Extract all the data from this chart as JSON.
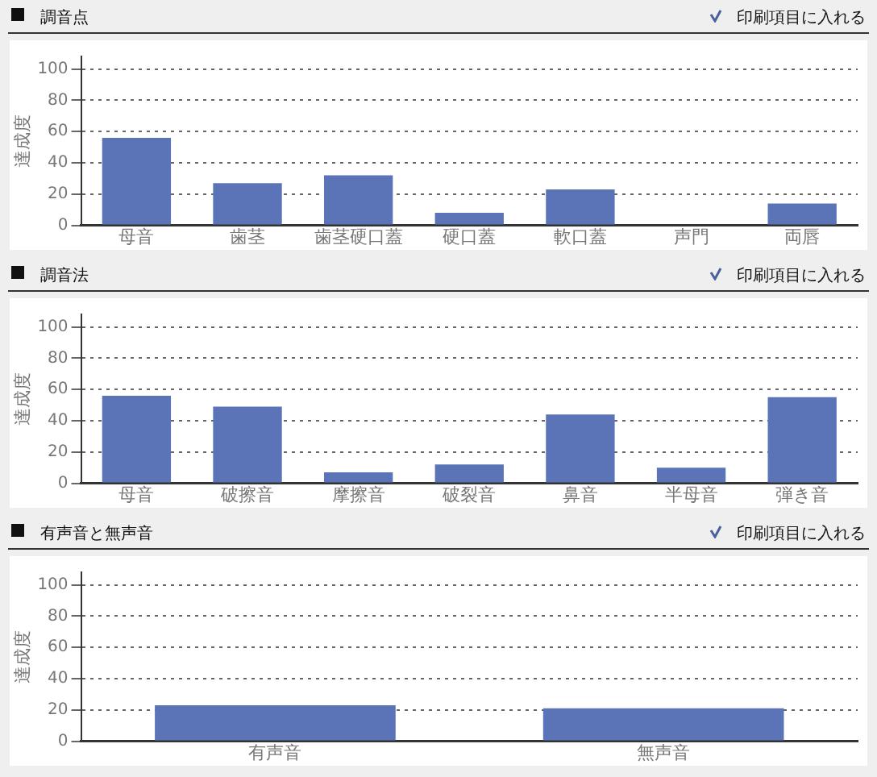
{
  "chart_data": [
    {
      "type": "bar",
      "title": "調音点",
      "ylabel": "達成度",
      "annotations": [
        "印刷項目に入れる"
      ],
      "categories": [
        "母音",
        "歯茎",
        "歯茎硬口蓋",
        "硬口蓋",
        "軟口蓋",
        "声門",
        "両唇"
      ],
      "values": [
        56,
        27,
        32,
        8,
        23,
        0,
        14
      ],
      "color": "#5b74b8",
      "ylim": [
        0,
        108
      ],
      "yticks": [
        0,
        20,
        40,
        60,
        80,
        100
      ],
      "grid": "y"
    },
    {
      "type": "bar",
      "title": "調音法",
      "ylabel": "達成度",
      "annotations": [
        "印刷項目に入れる"
      ],
      "categories": [
        "母音",
        "破擦音",
        "摩擦音",
        "破裂音",
        "鼻音",
        "半母音",
        "弾き音"
      ],
      "values": [
        56,
        49,
        7,
        12,
        44,
        10,
        55
      ],
      "color": "#5b74b8",
      "ylim": [
        0,
        108
      ],
      "yticks": [
        0,
        20,
        40,
        60,
        80,
        100
      ],
      "grid": "y"
    },
    {
      "type": "bar",
      "title": "有声音と無声音",
      "ylabel": "達成度",
      "annotations": [
        "印刷項目に入れる"
      ],
      "categories": [
        "有声音",
        "無声音"
      ],
      "values": [
        23,
        21
      ],
      "color": "#5b74b8",
      "ylim": [
        0,
        108
      ],
      "yticks": [
        0,
        20,
        40,
        60,
        80,
        100
      ],
      "grid": "y"
    }
  ]
}
